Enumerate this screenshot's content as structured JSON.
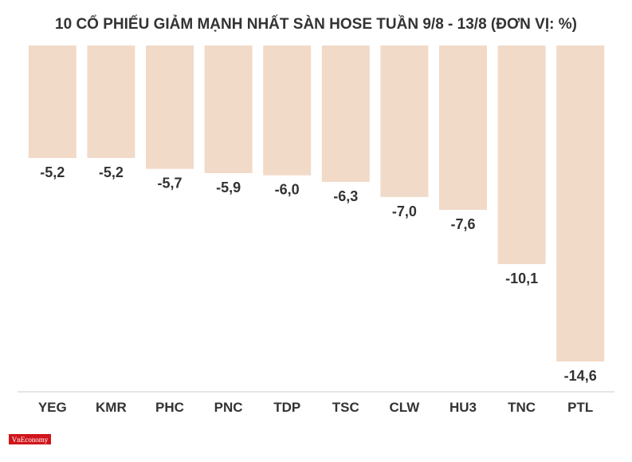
{
  "colors": {
    "bar": "#f2dac8",
    "text": "#333333",
    "axis": "#cccccc",
    "logo_bg": "#d0151b",
    "logo_text": "#ffffff",
    "background": "#ffffff"
  },
  "logo": {
    "text": "VnEconomy"
  },
  "chart_data": {
    "type": "bar",
    "title": "10 CỔ PHIẾU GIẢM MẠNH NHẤT SÀN HOSE TUẦN 9/8 - 13/8 (ĐƠN VỊ: %)",
    "categories": [
      "YEG",
      "KMR",
      "PHC",
      "PNC",
      "TDP",
      "TSC",
      "CLW",
      "HU3",
      "TNC",
      "PTL"
    ],
    "series": [
      {
        "values": [
          -5.2,
          -5.2,
          -5.7,
          -5.9,
          -6.0,
          -6.3,
          -7.0,
          -7.6,
          -10.1,
          -14.6
        ]
      }
    ],
    "value_labels": [
      "-5,2",
      "-5,2",
      "-5,7",
      "-5,9",
      "-6,0",
      "-6,3",
      "-7,0",
      "-7,6",
      "-10,1",
      "-14,6"
    ],
    "ylim": [
      -14.6,
      0
    ],
    "grid": false,
    "legend": "none",
    "xlabel": "",
    "ylabel": ""
  }
}
